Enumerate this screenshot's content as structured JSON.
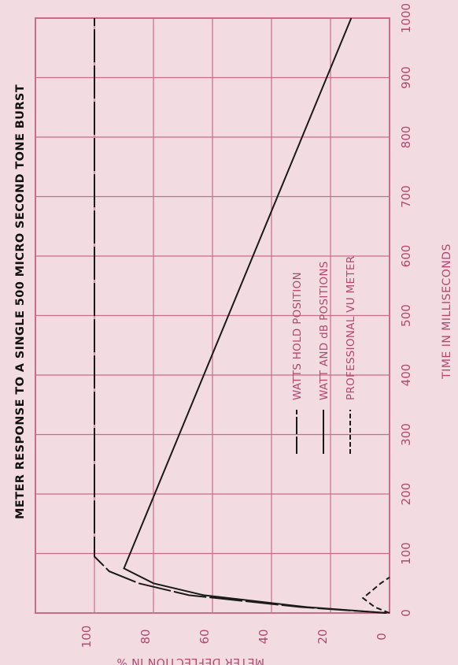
{
  "chart_data": {
    "type": "line",
    "title": "METER RESPONSE TO A SINGLE 500 MICRO SECOND TONE BURST",
    "xlabel": "TIME IN MILLISECONDS",
    "ylabel": "METER DEFLECTION IN %",
    "xlim": [
      0,
      1000
    ],
    "ylim": [
      0,
      120
    ],
    "x_ticks": [
      "0",
      "100",
      "200",
      "300",
      "400",
      "500",
      "600",
      "700",
      "800",
      "900",
      "1000"
    ],
    "y_ticks": [
      "0",
      "20",
      "40",
      "60",
      "80",
      "100"
    ],
    "grid": true,
    "rotation": "plot rotated 90 degrees counter-clockwise",
    "legend_position": "center-right",
    "colors": {
      "background": "#f2dce2",
      "grid": "#c96c8c",
      "text": "#b0486f",
      "line": "#1a1a1a"
    },
    "series": [
      {
        "name": "WATTS HOLD POSITION",
        "style": "long-dash",
        "points": [
          [
            0,
            1
          ],
          [
            10,
            30
          ],
          [
            30,
            68
          ],
          [
            50,
            85
          ],
          [
            70,
            95
          ],
          [
            95,
            100
          ],
          [
            200,
            100
          ],
          [
            500,
            100
          ],
          [
            1000,
            100
          ]
        ]
      },
      {
        "name": "WATT AND dB POSITIONS",
        "style": "solid",
        "points": [
          [
            0,
            1
          ],
          [
            10,
            28
          ],
          [
            30,
            63
          ],
          [
            50,
            80
          ],
          [
            75,
            90
          ],
          [
            1000,
            13
          ]
        ]
      },
      {
        "name": "PROFESSIONAL VU METER",
        "style": "dashed",
        "points": [
          [
            0,
            0
          ],
          [
            10,
            5
          ],
          [
            25,
            9
          ],
          [
            50,
            3
          ],
          [
            60,
            0
          ]
        ]
      }
    ]
  }
}
